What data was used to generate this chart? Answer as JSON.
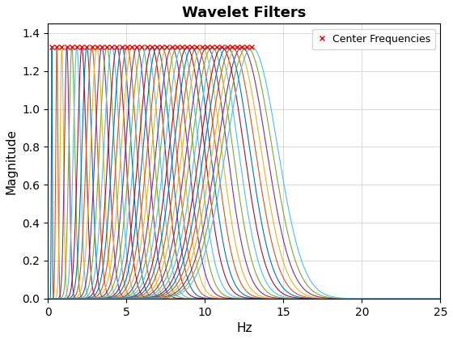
{
  "title": "Wavelet Filters",
  "xlabel": "Hz",
  "ylabel": "Magnitude",
  "xlim": [
    0,
    25
  ],
  "ylim": [
    0,
    1.45
  ],
  "yticks": [
    0,
    0.2,
    0.4,
    0.6,
    0.8,
    1.0,
    1.2,
    1.4
  ],
  "xticks": [
    0,
    5,
    10,
    15,
    20,
    25
  ],
  "peak_magnitude": 1.3258,
  "n_filters": 41,
  "freq_min": 0.25,
  "freq_max": 13.0,
  "background_color": "#ffffff",
  "grid_color": "#cccccc",
  "legend_label": "Center Frequencies",
  "marker_color": "#ff0000",
  "marker": "x",
  "Q_factor": 8.0,
  "matlab_colors": [
    "#0072BD",
    "#D95319",
    "#EDB120",
    "#7E2F8E",
    "#77AC30",
    "#4DBEEE",
    "#A2142F",
    "#0072BD",
    "#D95319",
    "#EDB120",
    "#7E2F8E",
    "#77AC30",
    "#4DBEEE",
    "#A2142F",
    "#0072BD",
    "#D95319",
    "#EDB120",
    "#7E2F8E",
    "#77AC30",
    "#4DBEEE",
    "#A2142F",
    "#0072BD",
    "#D95319",
    "#EDB120",
    "#7E2F8E",
    "#77AC30",
    "#4DBEEE",
    "#A2142F",
    "#0072BD",
    "#D95319",
    "#EDB120",
    "#7E2F8E",
    "#77AC30",
    "#4DBEEE",
    "#A2142F",
    "#0072BD",
    "#D95319",
    "#EDB120",
    "#7E2F8E",
    "#77AC30",
    "#4DBEEE"
  ]
}
